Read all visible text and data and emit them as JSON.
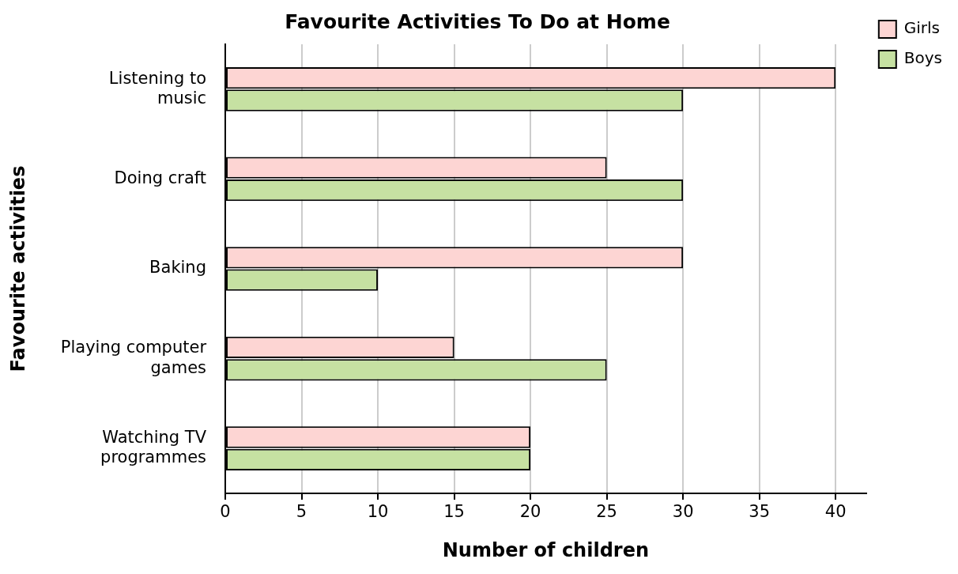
{
  "chart_data": {
    "type": "bar",
    "orientation": "horizontal",
    "title": "Favourite Activities To Do at Home",
    "xlabel": "Number of children",
    "ylabel": "Favourite activities",
    "categories": [
      "Listening to music",
      "Doing craft",
      "Baking",
      "Playing computer games",
      "Watching TV programmes"
    ],
    "series": [
      {
        "name": "Girls",
        "color": "#fdd5d3",
        "values": [
          40,
          25,
          30,
          15,
          20
        ]
      },
      {
        "name": "Boys",
        "color": "#c6e1a2",
        "values": [
          30,
          30,
          10,
          25,
          20
        ]
      }
    ],
    "xlim": [
      0,
      42
    ],
    "xticks": [
      0,
      5,
      10,
      15,
      20,
      25,
      30,
      35,
      40
    ],
    "grid": "x",
    "legend": "top right"
  }
}
